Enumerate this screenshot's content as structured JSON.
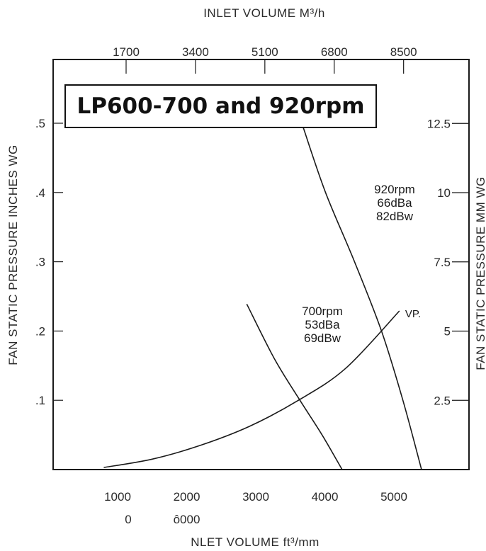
{
  "chart_data": {
    "type": "line",
    "title": "LP600-700 and 920rpm",
    "x_bottom": {
      "label": "NLET VOLUME ft³/mm",
      "ticks": [
        1000,
        2000,
        3000,
        4000,
        5000
      ],
      "tick_labels": [
        "1000",
        "2000",
        "3000",
        "4000",
        "5000"
      ],
      "second_row_labels": [
        "0",
        "ô000"
      ],
      "range": [
        0,
        6000
      ]
    },
    "x_top": {
      "label": "INLET VOLUME M³/h",
      "ticks": [
        1700,
        3400,
        5100,
        6800,
        8500
      ],
      "tick_labels": [
        "1700",
        "3400",
        "5100",
        "6800",
        "8500"
      ]
    },
    "y_left": {
      "label": "FAN STATIC PRESSURE INCHES WG",
      "ticks": [
        0.1,
        0.2,
        0.3,
        0.4,
        0.5
      ],
      "tick_labels": [
        ".1",
        ".2",
        ".3",
        ".4",
        ".5"
      ],
      "range": [
        0,
        0.5
      ]
    },
    "y_right": {
      "label": "FAN STATIC PRESSURE MM WG",
      "ticks": [
        2.5,
        5,
        7.5,
        10,
        12.5
      ],
      "tick_labels": [
        "2.5",
        "5",
        "7.5",
        "10",
        "12.5"
      ]
    },
    "series": [
      {
        "label_lines": [
          "920rpm",
          "66dBa",
          "82dBw"
        ],
        "x": [
          5400,
          5130,
          4820,
          4430,
          4010,
          3690
        ],
        "y": [
          0.0,
          0.1,
          0.2,
          0.3,
          0.4,
          0.493
        ]
      },
      {
        "label_lines": [
          "700rpm",
          "53dBa",
          "69dBw"
        ],
        "x": [
          4250,
          3960,
          3640,
          3270,
          2870
        ],
        "y": [
          0.0,
          0.05,
          0.1,
          0.16,
          0.239
        ]
      },
      {
        "name": "VP.",
        "x": [
          800,
          1500,
          2200,
          2900,
          3600,
          4300,
          5080
        ],
        "y": [
          0.003,
          0.015,
          0.035,
          0.062,
          0.099,
          0.146,
          0.229
        ]
      }
    ],
    "grid": false,
    "legend": "none"
  }
}
